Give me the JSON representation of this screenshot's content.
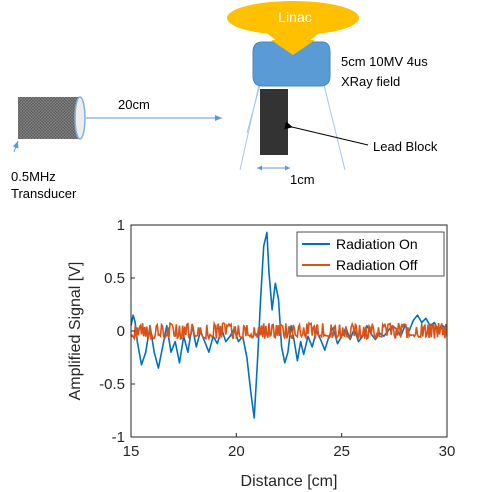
{
  "diagram": {
    "linac_label": "Linac",
    "field_label_line1": "5cm 10MV 4us",
    "field_label_line2": "XRay field",
    "distance_label": "20cm",
    "lead_block_label": "Lead Block",
    "block_width_label": "1cm",
    "transducer_label_line1": "0.5MHz",
    "transducer_label_line2": "Transducer",
    "colors": {
      "linac_fill": "#FFC000",
      "linac_text": "#FFFFFF",
      "collimator_fill": "#5B9BD5",
      "transducer_fill": "#666666",
      "lead_block_fill": "#333333",
      "dimension_line": "#5B9BD5"
    }
  },
  "chart_data": {
    "type": "line",
    "title": "",
    "xlabel": "Distance [cm]",
    "ylabel": "Amplified Signal [V]",
    "xlim": [
      15,
      30
    ],
    "ylim": [
      -1,
      1
    ],
    "xticks": [
      15,
      20,
      25,
      30
    ],
    "yticks": [
      -1,
      -0.5,
      0,
      0.5,
      1
    ],
    "xtick_labels": [
      "15",
      "20",
      "25",
      "30"
    ],
    "ytick_labels": [
      "-1",
      "-0.5",
      "0",
      "0.5",
      "1"
    ],
    "legend_position": "top-right",
    "grid": false,
    "series": [
      {
        "name": "Radiation On",
        "color": "#0072BD",
        "x": [
          15.0,
          15.1,
          15.2,
          15.3,
          15.5,
          15.7,
          15.9,
          16.1,
          16.3,
          16.5,
          16.7,
          16.9,
          17.1,
          17.3,
          17.5,
          17.7,
          17.9,
          18.1,
          18.3,
          18.5,
          18.7,
          18.9,
          19.1,
          19.3,
          19.5,
          19.7,
          19.9,
          20.1,
          20.3,
          20.5,
          20.7,
          20.85,
          21.0,
          21.15,
          21.3,
          21.45,
          21.55,
          21.7,
          21.85,
          22.0,
          22.15,
          22.3,
          22.45,
          22.6,
          22.75,
          22.9,
          23.05,
          23.2,
          23.4,
          23.6,
          23.8,
          24.0,
          24.2,
          24.4,
          24.6,
          24.8,
          25.0,
          25.2,
          25.4,
          25.6,
          25.8,
          26.0,
          26.2,
          26.4,
          26.6,
          26.8,
          27.0,
          27.2,
          27.4,
          27.6,
          27.8,
          28.0,
          28.2,
          28.4,
          28.6,
          28.8,
          29.0,
          29.2,
          29.4,
          29.6,
          29.8,
          30.0
        ],
        "y": [
          0.05,
          0.15,
          0.08,
          -0.1,
          -0.32,
          -0.2,
          0.05,
          -0.2,
          -0.35,
          -0.15,
          0.05,
          -0.2,
          -0.1,
          -0.3,
          -0.05,
          -0.2,
          0.05,
          -0.15,
          0.0,
          -0.1,
          -0.2,
          -0.05,
          -0.12,
          0.02,
          -0.1,
          -0.05,
          0.02,
          -0.1,
          -0.05,
          -0.25,
          -0.6,
          -0.82,
          -0.3,
          0.3,
          0.8,
          0.93,
          0.55,
          0.2,
          0.45,
          0.3,
          -0.15,
          -0.3,
          -0.2,
          0.05,
          -0.1,
          -0.28,
          -0.1,
          -0.22,
          -0.05,
          -0.15,
          0.0,
          -0.08,
          -0.18,
          -0.05,
          0.03,
          -0.12,
          -0.05,
          0.03,
          -0.08,
          0.02,
          -0.1,
          -0.05,
          0.05,
          -0.03,
          -0.08,
          -0.02,
          -0.05,
          0.0,
          0.05,
          0.02,
          -0.05,
          0.05,
          0.0,
          0.1,
          0.15,
          0.08,
          0.12,
          0.05,
          0.08,
          0.0,
          0.05,
          0.02
        ]
      },
      {
        "name": "Radiation Off",
        "color": "#D95319",
        "x_start": 15,
        "x_end": 30,
        "x_step": 0.05,
        "amplitude": 0.075,
        "center": 0.0
      }
    ]
  }
}
